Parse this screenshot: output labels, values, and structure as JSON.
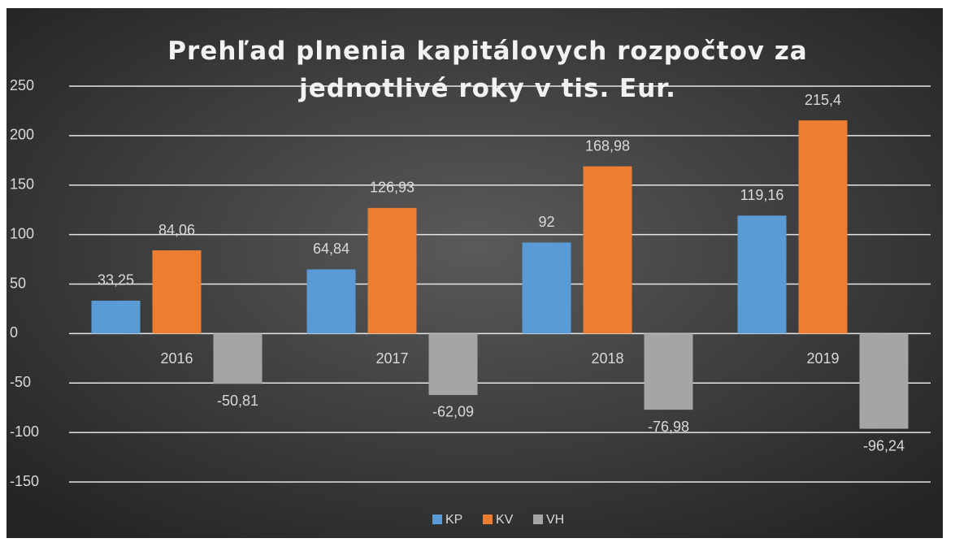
{
  "chart_data": {
    "type": "bar",
    "title": "Prehľad plnenia kapitálovych rozpočtov za jednotlivé roky v tis. Eur.",
    "categories": [
      "2016",
      "2017",
      "2018",
      "2019"
    ],
    "series": [
      {
        "name": "KP",
        "color": "#5b9bd5",
        "values": [
          33.25,
          64.84,
          92,
          119.16
        ],
        "value_labels": [
          "33,25",
          "64,84",
          "92",
          "119,16"
        ]
      },
      {
        "name": "KV",
        "color": "#ed7d31",
        "values": [
          84.06,
          126.93,
          168.98,
          215.4
        ],
        "value_labels": [
          "84,06",
          "126,93",
          "168,98",
          "215,4"
        ]
      },
      {
        "name": "VH",
        "color": "#a5a5a5",
        "values": [
          -50.81,
          -62.09,
          -76.98,
          -96.24
        ],
        "value_labels": [
          "-50,81",
          "-62,09",
          "-76,98",
          "-96,24"
        ]
      }
    ],
    "ylim": [
      -150,
      250
    ],
    "yticks": [
      -150,
      -100,
      -50,
      0,
      50,
      100,
      150,
      200,
      250
    ],
    "grid": true,
    "legend": "bottom"
  }
}
